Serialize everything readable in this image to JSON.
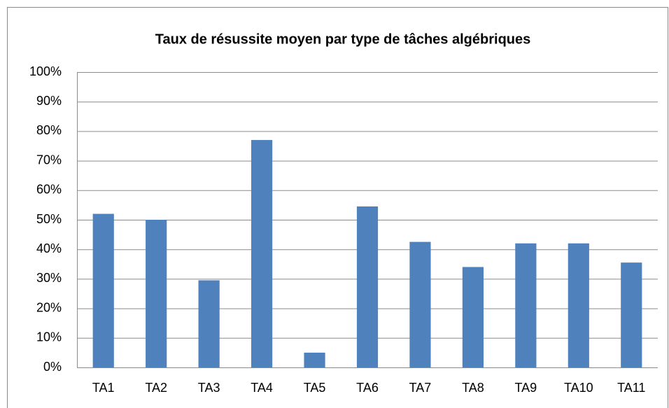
{
  "chart_data": {
    "type": "bar",
    "title": "Taux de résussite moyen par type de tâches algébriques",
    "categories": [
      "TA1",
      "TA2",
      "TA3",
      "TA4",
      "TA5",
      "TA6",
      "TA7",
      "TA8",
      "TA9",
      "TA10",
      "TA11"
    ],
    "values": [
      52,
      50,
      29.5,
      77,
      5,
      54.5,
      42.5,
      34,
      42,
      42,
      35.5
    ],
    "color": "#4f81bd",
    "ylim": [
      0,
      100
    ],
    "yticks": [
      {
        "value": 0,
        "label": "0%"
      },
      {
        "value": 10,
        "label": "10%"
      },
      {
        "value": 20,
        "label": "20%"
      },
      {
        "value": 30,
        "label": "30%"
      },
      {
        "value": 40,
        "label": "40%"
      },
      {
        "value": 50,
        "label": "50%"
      },
      {
        "value": 60,
        "label": "60%"
      },
      {
        "value": 70,
        "label": "70%"
      },
      {
        "value": 80,
        "label": "80%"
      },
      {
        "value": 90,
        "label": "90%"
      },
      {
        "value": 100,
        "label": "100%"
      }
    ],
    "grid": true
  }
}
